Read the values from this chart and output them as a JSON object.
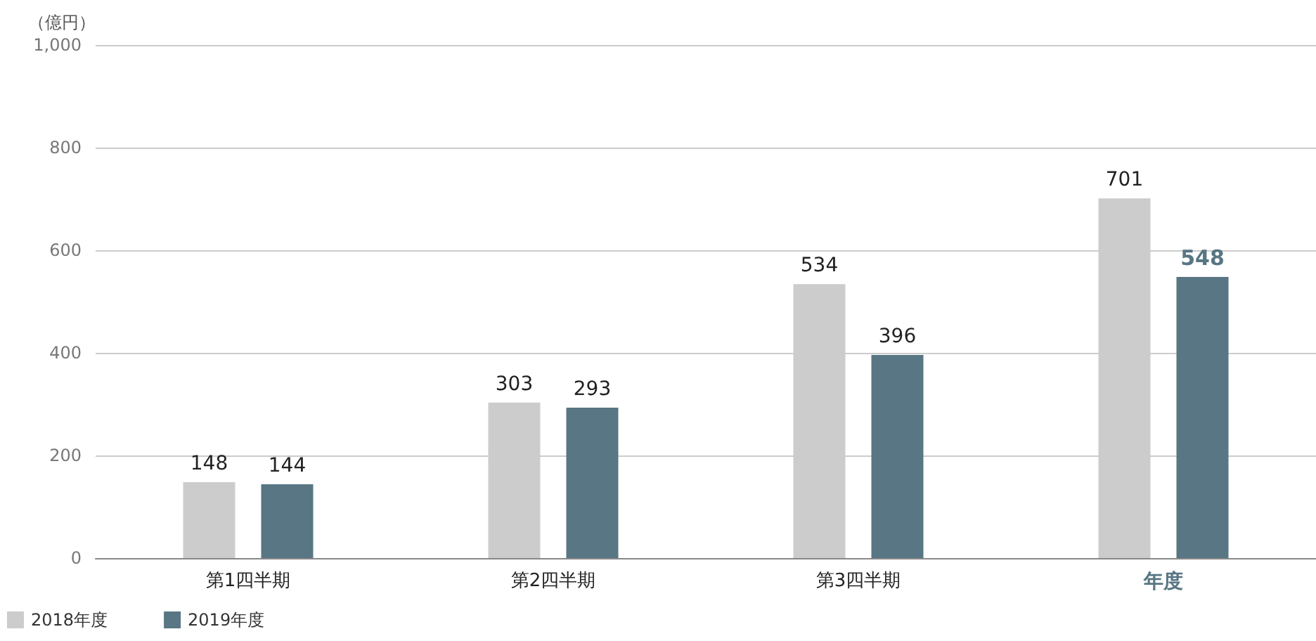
{
  "chart_data": {
    "type": "bar",
    "ylabel": "（億円）",
    "categories": [
      "第1四半期",
      "第2四半期",
      "第3四半期",
      "年度"
    ],
    "series": [
      {
        "name": "2018年度",
        "color": "#cccccc",
        "values": [
          148,
          303,
          534,
          701
        ]
      },
      {
        "name": "2019年度",
        "color": "#587683",
        "values": [
          144,
          293,
          396,
          548
        ]
      }
    ],
    "ylim": [
      0,
      1000
    ],
    "yticks": [
      0,
      200,
      400,
      600,
      800,
      {
        "value": 1000,
        "label": "1,000"
      }
    ],
    "grid": "y",
    "legend": "bottom left",
    "data_labels": true
  }
}
